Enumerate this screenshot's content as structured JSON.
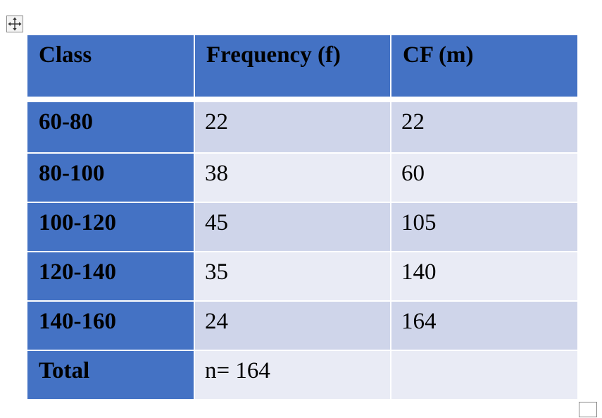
{
  "table": {
    "headers": [
      "Class",
      "Frequency (f)",
      "CF (m)"
    ],
    "rows": [
      [
        "60-80",
        "22",
        "22"
      ],
      [
        "80-100",
        "38",
        "60"
      ],
      [
        "100-120",
        "45",
        "105"
      ],
      [
        "120-140",
        "35",
        "140"
      ],
      [
        "140-160",
        "24",
        "164"
      ],
      [
        "Total",
        "n= 164",
        ""
      ]
    ]
  },
  "icons": {
    "move_handle": "table-move-handle-icon",
    "resize_handle": "table-resize-handle-icon"
  },
  "colors": {
    "header_fill": "#4472c4",
    "row_band_dark": "#cfd5ea",
    "row_band_light": "#e9ebf5"
  }
}
